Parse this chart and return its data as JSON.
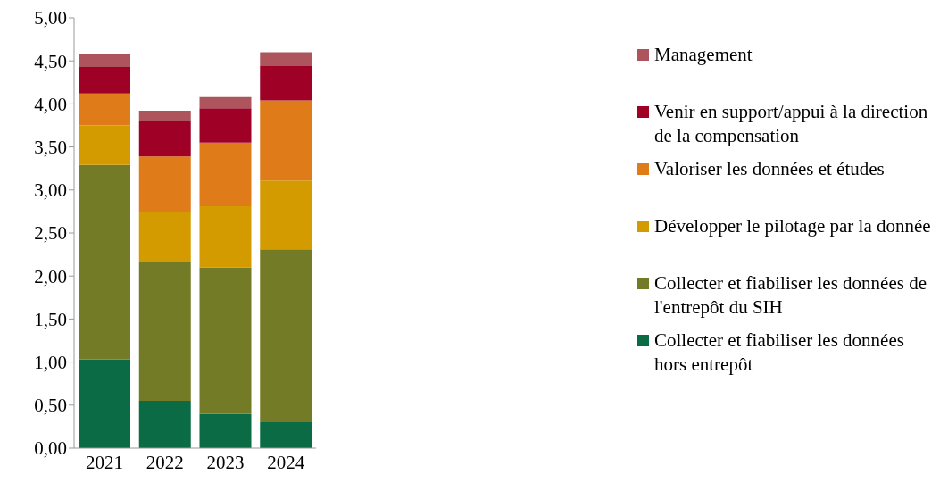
{
  "chart_data": {
    "type": "bar",
    "stacked": true,
    "categories": [
      "2021",
      "2022",
      "2023",
      "2024"
    ],
    "series": [
      {
        "name": "Collecter et fiabiliser les données hors entrepôt",
        "color": "#0b6b45",
        "values": [
          1.03,
          0.55,
          0.4,
          0.3
        ]
      },
      {
        "name": "Collecter et fiabiliser les données de l'entrepôt du SIH",
        "color": "#747b26",
        "values": [
          2.26,
          1.61,
          1.7,
          2.01
        ]
      },
      {
        "name": "Développer le pilotage par la donnée",
        "color": "#d49b00",
        "values": [
          0.46,
          0.59,
          0.71,
          0.8
        ]
      },
      {
        "name": "Valoriser les données et études",
        "color": "#e07b1a",
        "values": [
          0.37,
          0.64,
          0.74,
          0.93
        ]
      },
      {
        "name": "Venir en support/appui à la direction de la compensation",
        "color": "#9f0026",
        "values": [
          0.31,
          0.41,
          0.4,
          0.4
        ]
      },
      {
        "name": "Management",
        "color": "#ae545c",
        "values": [
          0.15,
          0.12,
          0.13,
          0.16
        ]
      }
    ],
    "ylim": [
      0,
      5
    ],
    "yticks": [
      {
        "value": 0,
        "label": "0,00"
      },
      {
        "value": 0.5,
        "label": "0,50"
      },
      {
        "value": 1,
        "label": "1,00"
      },
      {
        "value": 1.5,
        "label": "1,50"
      },
      {
        "value": 2,
        "label": "2,00"
      },
      {
        "value": 2.5,
        "label": "2,50"
      },
      {
        "value": 3,
        "label": "3,00"
      },
      {
        "value": 3.5,
        "label": "3,50"
      },
      {
        "value": 4,
        "label": "4,00"
      },
      {
        "value": 4.5,
        "label": "4,50"
      },
      {
        "value": 5,
        "label": "5,00"
      }
    ],
    "grid": false,
    "legend": "right"
  }
}
